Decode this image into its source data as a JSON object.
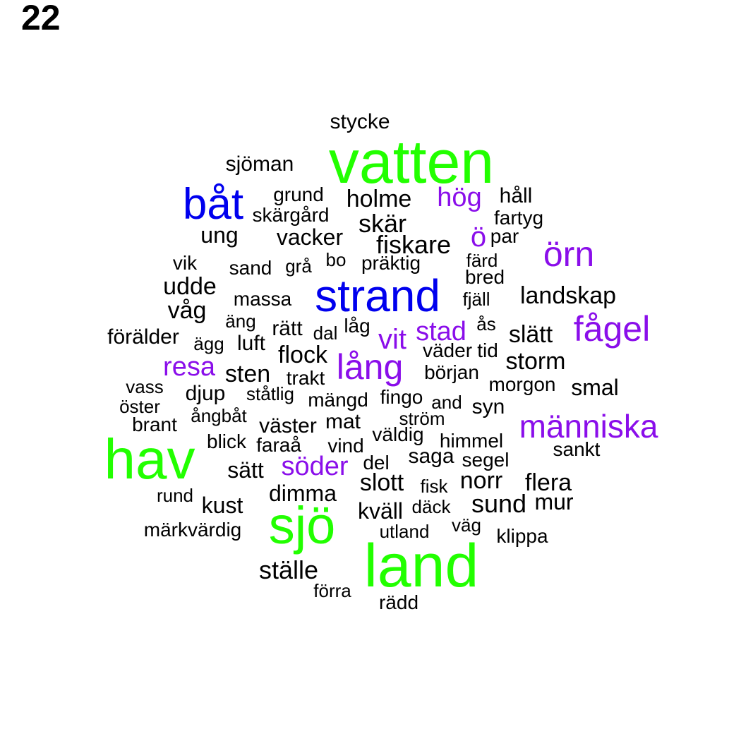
{
  "figure_number": "22",
  "colors": {
    "green": "#22ff00",
    "blue": "#0000ee",
    "purple": "#8a0eea",
    "black": "#000000"
  },
  "words": [
    {
      "text": "stycke",
      "color": "black"
    },
    {
      "text": "vatten",
      "color": "green"
    },
    {
      "text": "sjöman",
      "color": "black"
    },
    {
      "text": "båt",
      "color": "blue"
    },
    {
      "text": "grund",
      "color": "black"
    },
    {
      "text": "holme",
      "color": "black"
    },
    {
      "text": "hög",
      "color": "purple"
    },
    {
      "text": "håll",
      "color": "black"
    },
    {
      "text": "skärgård",
      "color": "black"
    },
    {
      "text": "fartyg",
      "color": "black"
    },
    {
      "text": "skär",
      "color": "black"
    },
    {
      "text": "ung",
      "color": "black"
    },
    {
      "text": "vacker",
      "color": "black"
    },
    {
      "text": "ö",
      "color": "purple"
    },
    {
      "text": "par",
      "color": "black"
    },
    {
      "text": "fiskare",
      "color": "black"
    },
    {
      "text": "örn",
      "color": "purple"
    },
    {
      "text": "vik",
      "color": "black"
    },
    {
      "text": "sand",
      "color": "black"
    },
    {
      "text": "grå",
      "color": "black"
    },
    {
      "text": "bo",
      "color": "black"
    },
    {
      "text": "präktig",
      "color": "black"
    },
    {
      "text": "färd",
      "color": "black"
    },
    {
      "text": "bred",
      "color": "black"
    },
    {
      "text": "udde",
      "color": "black"
    },
    {
      "text": "strand",
      "color": "blue"
    },
    {
      "text": "massa",
      "color": "black"
    },
    {
      "text": "fjäll",
      "color": "black"
    },
    {
      "text": "landskap",
      "color": "black"
    },
    {
      "text": "våg",
      "color": "black"
    },
    {
      "text": "äng",
      "color": "black"
    },
    {
      "text": "rätt",
      "color": "black"
    },
    {
      "text": "dal",
      "color": "black"
    },
    {
      "text": "låg",
      "color": "black"
    },
    {
      "text": "ås",
      "color": "black"
    },
    {
      "text": "fågel",
      "color": "purple"
    },
    {
      "text": "förälder",
      "color": "black"
    },
    {
      "text": "ägg",
      "color": "black"
    },
    {
      "text": "luft",
      "color": "black"
    },
    {
      "text": "vit",
      "color": "purple"
    },
    {
      "text": "stad",
      "color": "purple"
    },
    {
      "text": "slätt",
      "color": "black"
    },
    {
      "text": "väder",
      "color": "black"
    },
    {
      "text": "tid",
      "color": "black"
    },
    {
      "text": "flock",
      "color": "black"
    },
    {
      "text": "storm",
      "color": "black"
    },
    {
      "text": "resa",
      "color": "purple"
    },
    {
      "text": "lång",
      "color": "purple"
    },
    {
      "text": "sten",
      "color": "black"
    },
    {
      "text": "trakt",
      "color": "black"
    },
    {
      "text": "början",
      "color": "black"
    },
    {
      "text": "vass",
      "color": "black"
    },
    {
      "text": "morgon",
      "color": "black"
    },
    {
      "text": "smal",
      "color": "black"
    },
    {
      "text": "djup",
      "color": "black"
    },
    {
      "text": "ståtlig",
      "color": "black"
    },
    {
      "text": "mängd",
      "color": "black"
    },
    {
      "text": "fingo",
      "color": "black"
    },
    {
      "text": "öster",
      "color": "black"
    },
    {
      "text": "and",
      "color": "black"
    },
    {
      "text": "syn",
      "color": "black"
    },
    {
      "text": "ångbåt",
      "color": "black"
    },
    {
      "text": "ström",
      "color": "black"
    },
    {
      "text": "brant",
      "color": "black"
    },
    {
      "text": "väster",
      "color": "black"
    },
    {
      "text": "mat",
      "color": "black"
    },
    {
      "text": "människa",
      "color": "purple"
    },
    {
      "text": "väldig",
      "color": "black"
    },
    {
      "text": "himmel",
      "color": "black"
    },
    {
      "text": "hav",
      "color": "green"
    },
    {
      "text": "blick",
      "color": "black"
    },
    {
      "text": "faraå",
      "color": "black"
    },
    {
      "text": "vind",
      "color": "black"
    },
    {
      "text": "sankt",
      "color": "black"
    },
    {
      "text": "saga",
      "color": "black"
    },
    {
      "text": "söder",
      "color": "purple"
    },
    {
      "text": "sätt",
      "color": "black"
    },
    {
      "text": "del",
      "color": "black"
    },
    {
      "text": "segel",
      "color": "black"
    },
    {
      "text": "slott",
      "color": "black"
    },
    {
      "text": "norr",
      "color": "black"
    },
    {
      "text": "flera",
      "color": "black"
    },
    {
      "text": "fisk",
      "color": "black"
    },
    {
      "text": "dimma",
      "color": "black"
    },
    {
      "text": "rund",
      "color": "black"
    },
    {
      "text": "sund",
      "color": "black"
    },
    {
      "text": "mur",
      "color": "black"
    },
    {
      "text": "kust",
      "color": "black"
    },
    {
      "text": "kväll",
      "color": "black"
    },
    {
      "text": "däck",
      "color": "black"
    },
    {
      "text": "sjö",
      "color": "green"
    },
    {
      "text": "märkvärdig",
      "color": "black"
    },
    {
      "text": "utland",
      "color": "black"
    },
    {
      "text": "väg",
      "color": "black"
    },
    {
      "text": "klippa",
      "color": "black"
    },
    {
      "text": "land",
      "color": "green"
    },
    {
      "text": "ställe",
      "color": "black"
    },
    {
      "text": "förra",
      "color": "black"
    },
    {
      "text": "rädd",
      "color": "black"
    }
  ]
}
